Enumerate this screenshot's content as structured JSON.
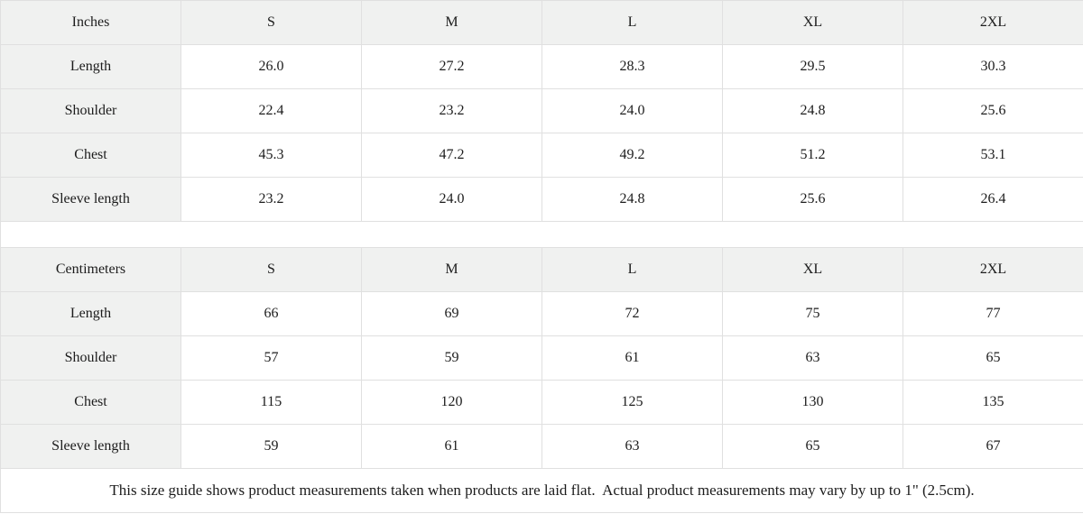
{
  "colors": {
    "background": "#ffffff",
    "header_bg": "#f0f1f0",
    "border": "#e0e0e0",
    "text": "#1c1c1c"
  },
  "tables": [
    {
      "unit_label": "Inches",
      "sizes": [
        "S",
        "M",
        "L",
        "XL",
        "2XL"
      ],
      "rows": [
        {
          "label": "Length",
          "values": [
            "26.0",
            "27.2",
            "28.3",
            "29.5",
            "30.3"
          ]
        },
        {
          "label": "Shoulder",
          "values": [
            "22.4",
            "23.2",
            "24.0",
            "24.8",
            "25.6"
          ]
        },
        {
          "label": "Chest",
          "values": [
            "45.3",
            "47.2",
            "49.2",
            "51.2",
            "53.1"
          ]
        },
        {
          "label": "Sleeve length",
          "values": [
            "23.2",
            "24.0",
            "24.8",
            "25.6",
            "26.4"
          ]
        }
      ]
    },
    {
      "unit_label": "Centimeters",
      "sizes": [
        "S",
        "M",
        "L",
        "XL",
        "2XL"
      ],
      "rows": [
        {
          "label": "Length",
          "values": [
            "66",
            "69",
            "72",
            "75",
            "77"
          ]
        },
        {
          "label": "Shoulder",
          "values": [
            "57",
            "59",
            "61",
            "63",
            "65"
          ]
        },
        {
          "label": "Chest",
          "values": [
            "115",
            "120",
            "125",
            "130",
            "135"
          ]
        },
        {
          "label": "Sleeve length",
          "values": [
            "59",
            "61",
            "63",
            "65",
            "67"
          ]
        }
      ]
    }
  ],
  "footer": {
    "note": "This size guide shows product measurements taken when products are laid flat.  Actual product measurements may vary by up to 1\" (2.5cm)."
  }
}
